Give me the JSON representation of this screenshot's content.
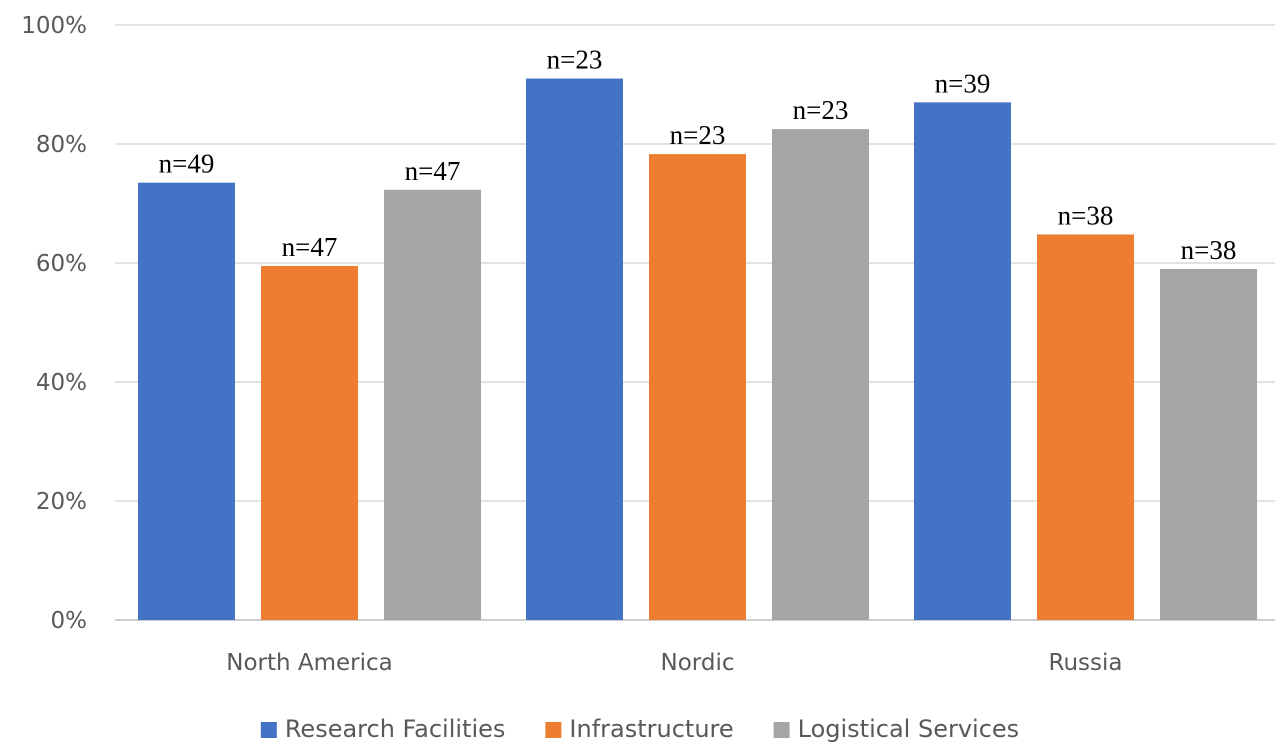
{
  "chart_data": {
    "type": "bar",
    "title": "",
    "xlabel": "",
    "ylabel": "",
    "categories": [
      "North America",
      "Nordic",
      "Russia"
    ],
    "ylim": [
      0,
      100
    ],
    "yticks": [
      0,
      20,
      40,
      60,
      80,
      100
    ],
    "ytick_labels": [
      "0%",
      "20%",
      "40%",
      "60%",
      "80%",
      "100%"
    ],
    "grid": true,
    "legend_position": "bottom",
    "series": [
      {
        "name": "Research Facilities",
        "color": "#4472C4",
        "values": [
          73.5,
          91,
          87
        ],
        "labels": [
          "n=49",
          "n=23",
          "n=39"
        ]
      },
      {
        "name": "Infrastructure",
        "color": "#ED7D31",
        "values": [
          59.5,
          78.3,
          64.8
        ],
        "labels": [
          "n=47",
          "n=23",
          "n=38"
        ]
      },
      {
        "name": "Logistical Services",
        "color": "#A5A5A5",
        "values": [
          72.3,
          82.5,
          59
        ],
        "labels": [
          "n=47",
          "n=23",
          "n=38"
        ]
      }
    ]
  }
}
